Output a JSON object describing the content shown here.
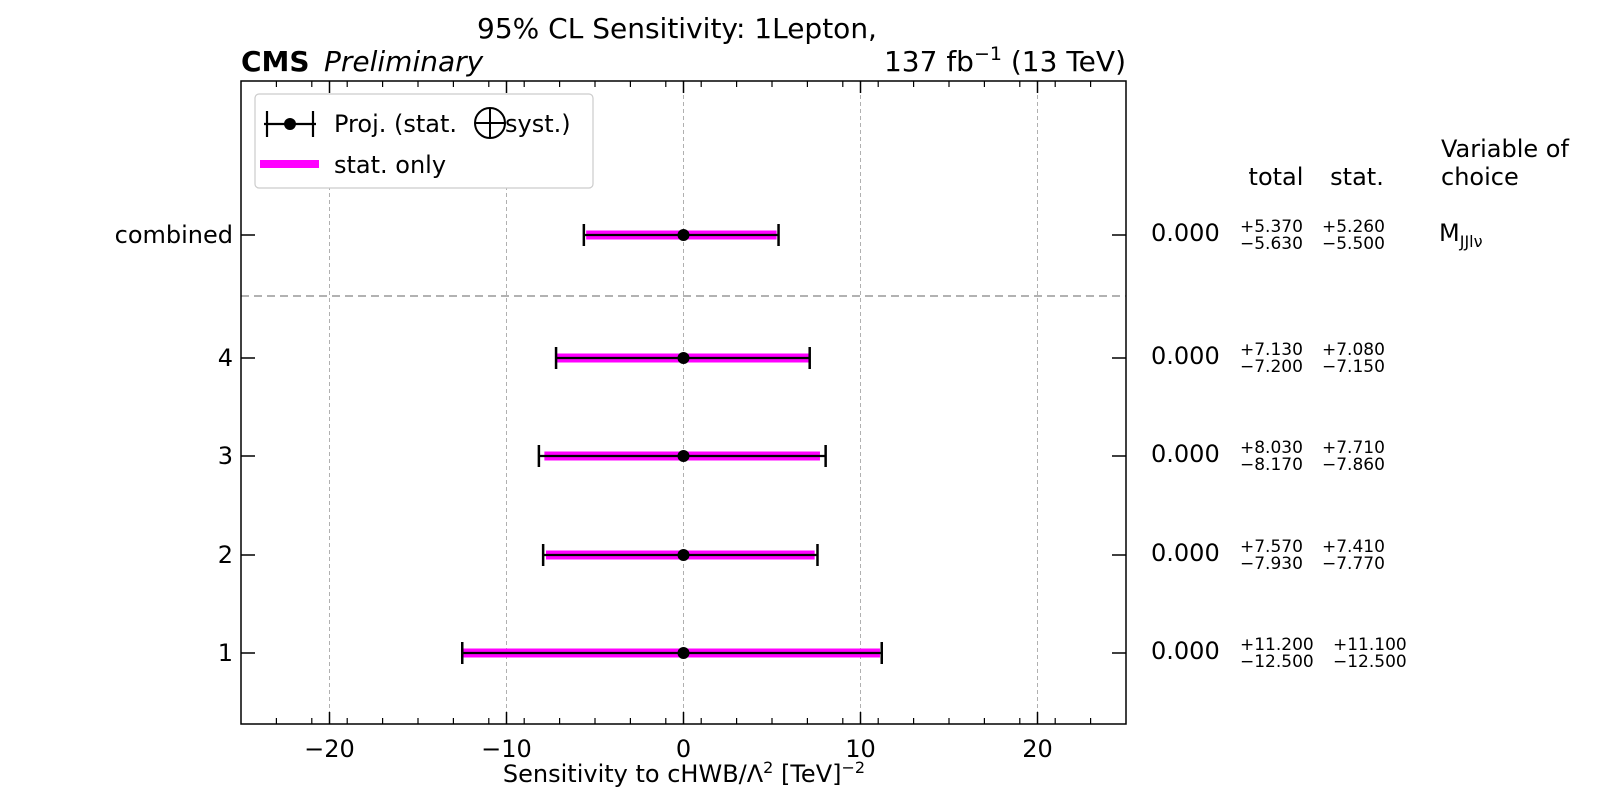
{
  "chart_data": {
    "type": "errorbar",
    "title": "95% CL Sensitivity: 1Lepton,",
    "experiment": "CMS",
    "status": "Preliminary",
    "lumi_label": {
      "base": "137 fb",
      "exponent": "−1",
      "suffix": " (13 TeV)"
    },
    "xlabel": {
      "base": "Sensitivity to cHWB/Λ",
      "exponent": "2",
      "mid": " [TeV]",
      "exponent2": "−2"
    },
    "xlim": [
      -25,
      25
    ],
    "xticks": [
      -20,
      -10,
      0,
      10,
      20
    ],
    "xtick_labels": [
      "−20",
      "−10",
      "0",
      "10",
      "20"
    ],
    "grid": true,
    "legend": {
      "placement": "top-left",
      "entries": [
        {
          "label": "Proj. (stat. ⊕ syst.)",
          "label_before": "Proj. (stat.",
          "label_after": "syst.)"
        },
        {
          "label": "stat. only"
        }
      ]
    },
    "table_headers": {
      "total": "total",
      "stat": "stat.",
      "variable": [
        "Variable of",
        "choice"
      ]
    },
    "rows": [
      {
        "label": "combined",
        "central": 0.0,
        "central_text": "0.000",
        "total_up": 5.37,
        "total_down": -5.63,
        "stat_up": 5.26,
        "stat_down": -5.5,
        "total_up_text": "+5.370",
        "total_down_text": "−5.630",
        "stat_up_text": "+5.260",
        "stat_down_text": "−5.500",
        "variable": {
          "base": "M",
          "sub": "JJlν"
        }
      },
      {
        "label": "4",
        "central": 0.0,
        "central_text": "0.000",
        "total_up": 7.13,
        "total_down": -7.2,
        "stat_up": 7.08,
        "stat_down": -7.15,
        "total_up_text": "+7.130",
        "total_down_text": "−7.200",
        "stat_up_text": "+7.080",
        "stat_down_text": "−7.150"
      },
      {
        "label": "3",
        "central": 0.0,
        "central_text": "0.000",
        "total_up": 8.03,
        "total_down": -8.17,
        "stat_up": 7.71,
        "stat_down": -7.86,
        "total_up_text": "+8.030",
        "total_down_text": "−8.170",
        "stat_up_text": "+7.710",
        "stat_down_text": "−7.860"
      },
      {
        "label": "2",
        "central": 0.0,
        "central_text": "0.000",
        "total_up": 7.57,
        "total_down": -7.93,
        "stat_up": 7.41,
        "stat_down": -7.77,
        "total_up_text": "+7.570",
        "total_down_text": "−7.930",
        "stat_up_text": "+7.410",
        "stat_down_text": "−7.770"
      },
      {
        "label": "1",
        "central": 0.0,
        "central_text": "0.000",
        "total_up": 11.2,
        "total_down": -12.5,
        "stat_up": 11.1,
        "stat_down": -12.5,
        "total_up_text": "+11.200",
        "total_down_text": "−12.500",
        "stat_up_text": "+11.100",
        "stat_down_text": "−12.500"
      }
    ],
    "colors": {
      "stat_band": "#ff00ff",
      "total_bar": "#000000",
      "marker": "#000000",
      "grid": "#b0b0b0",
      "separator": "#999999"
    }
  }
}
